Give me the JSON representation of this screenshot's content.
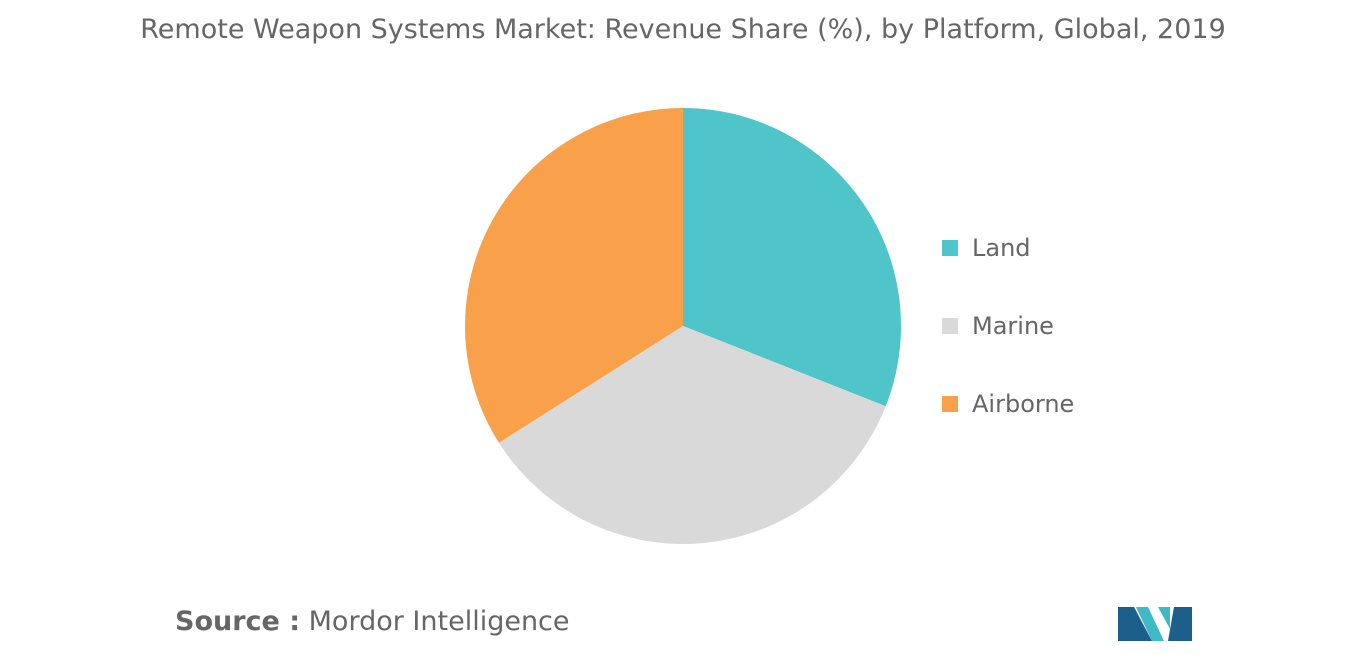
{
  "title": "Remote Weapon Systems Market: Revenue Share (%), by Platform, Global, 2019",
  "source": {
    "prefix": "Source :",
    "name": "Mordor Intelligence"
  },
  "chart_data": {
    "type": "pie",
    "title": "Remote Weapon Systems Market: Revenue Share (%), by Platform, Global, 2019",
    "categories": [
      "Land",
      "Marine",
      "Airborne"
    ],
    "values": [
      31,
      35,
      34
    ],
    "colors": [
      "#4fc4c9",
      "#d9d9d9",
      "#f9a04a"
    ],
    "start_angle": "12 o'clock",
    "direction": "clockwise",
    "legend_position": "right"
  },
  "legend": {
    "items": [
      {
        "label": "Land",
        "color": "#4fc4c9"
      },
      {
        "label": "Marine",
        "color": "#d9d9d9"
      },
      {
        "label": "Airborne",
        "color": "#f9a04a"
      }
    ]
  },
  "logo": {
    "name": "mordor-intelligence-logo",
    "colors": [
      "#1c5f8a",
      "#3fb9c4"
    ]
  }
}
